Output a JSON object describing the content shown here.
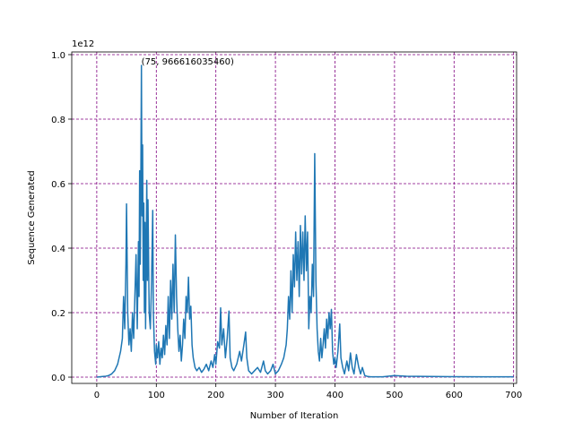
{
  "chart_data": {
    "type": "line",
    "xlabel": "Number of Iteration",
    "ylabel": "Sequence Generated",
    "y_offset_label": "1e12",
    "annotation": {
      "text": "(75, 966616035460)",
      "x": 75,
      "y": 966616035460
    },
    "color": "#1f77b4",
    "grid": true,
    "grid_color": "#800080",
    "xlim": [
      -42,
      705
    ],
    "ylim": [
      -19400000000.0,
      1008300000000.0
    ],
    "xticks": [
      0,
      100,
      200,
      300,
      400,
      500,
      600,
      700
    ],
    "yticks": [
      {
        "value": 0,
        "label": "0.0"
      },
      {
        "value": 200000000000.0,
        "label": "0.2"
      },
      {
        "value": 400000000000.0,
        "label": "0.4"
      },
      {
        "value": 600000000000.0,
        "label": "0.6"
      },
      {
        "value": 800000000000.0,
        "label": "0.8"
      },
      {
        "value": 1000000000000.0,
        "label": "1.0"
      }
    ],
    "x": [
      0,
      5,
      10,
      15,
      20,
      25,
      30,
      35,
      40,
      43,
      45,
      47,
      49,
      50,
      52,
      54,
      56,
      58,
      60,
      62,
      64,
      66,
      68,
      70,
      71,
      72,
      73,
      74,
      75,
      76,
      77,
      78,
      79,
      80,
      81,
      82,
      83,
      84,
      85,
      86,
      88,
      90,
      92,
      94,
      95,
      97,
      99,
      100,
      102,
      104,
      106,
      108,
      110,
      112,
      114,
      116,
      118,
      120,
      122,
      124,
      126,
      128,
      130,
      132,
      134,
      136,
      138,
      140,
      142,
      144,
      146,
      148,
      150,
      152,
      154,
      156,
      158,
      160,
      162,
      165,
      168,
      172,
      176,
      180,
      184,
      188,
      192,
      195,
      198,
      200,
      203,
      206,
      208,
      210,
      213,
      216,
      219,
      222,
      224,
      227,
      230,
      235,
      240,
      243,
      247,
      250,
      252,
      255,
      260,
      265,
      270,
      275,
      280,
      283,
      287,
      292,
      296,
      300,
      305,
      310,
      314,
      318,
      320,
      322,
      324,
      326,
      328,
      330,
      332,
      334,
      336,
      338,
      340,
      342,
      344,
      346,
      348,
      350,
      352,
      354,
      356,
      358,
      360,
      362,
      364,
      366,
      368,
      370,
      372,
      374,
      376,
      378,
      380,
      382,
      384,
      386,
      388,
      390,
      392,
      394,
      396,
      398,
      400,
      402,
      405,
      408,
      410,
      413,
      416,
      420,
      423,
      426,
      429,
      432,
      436,
      440,
      443,
      446,
      450,
      455,
      460,
      480,
      500,
      520,
      560,
      600,
      650,
      700
    ],
    "values": [
      0,
      1000000000.0,
      2000000000.0,
      3000000000.0,
      5000000000.0,
      10000000000.0,
      20000000000.0,
      40000000000.0,
      80000000000.0,
      120000000000.0,
      250000000000.0,
      150000000000.0,
      350000000000.0,
      537000000000.0,
      200000000000.0,
      100000000000.0,
      150000000000.0,
      80000000000.0,
      200000000000.0,
      120000000000.0,
      250000000000.0,
      380000000000.0,
      150000000000.0,
      420000000000.0,
      250000000000.0,
      640000000000.0,
      350000000000.0,
      600000000000.0,
      966616035460,
      500000000000.0,
      720000000000.0,
      300000000000.0,
      540000000000.0,
      200000000000.0,
      480000000000.0,
      150000000000.0,
      380000000000.0,
      610000000000.0,
      300000000000.0,
      550000000000.0,
      200000000000.0,
      150000000000.0,
      300000000000.0,
      517000000000.0,
      200000000000.0,
      80000000000.0,
      40000000000.0,
      100000000000.0,
      60000000000.0,
      110000000000.0,
      40000000000.0,
      90000000000.0,
      60000000000.0,
      130000000000.0,
      70000000000.0,
      160000000000.0,
      100000000000.0,
      250000000000.0,
      120000000000.0,
      300000000000.0,
      180000000000.0,
      350000000000.0,
      200000000000.0,
      441000000000.0,
      250000000000.0,
      150000000000.0,
      80000000000.0,
      130000000000.0,
      50000000000.0,
      100000000000.0,
      180000000000.0,
      120000000000.0,
      250000000000.0,
      200000000000.0,
      310000000000.0,
      180000000000.0,
      220000000000.0,
      100000000000.0,
      60000000000.0,
      30000000000.0,
      20000000000.0,
      30000000000.0,
      15000000000.0,
      25000000000.0,
      40000000000.0,
      20000000000.0,
      50000000000.0,
      30000000000.0,
      70000000000.0,
      40000000000.0,
      110000000000.0,
      90000000000.0,
      215000000000.0,
      100000000000.0,
      150000000000.0,
      60000000000.0,
      120000000000.0,
      205000000000.0,
      60000000000.0,
      30000000000.0,
      20000000000.0,
      40000000000.0,
      80000000000.0,
      50000000000.0,
      100000000000.0,
      140000000000.0,
      60000000000.0,
      20000000000.0,
      10000000000.0,
      20000000000.0,
      30000000000.0,
      15000000000.0,
      50000000000.0,
      20000000000.0,
      10000000000.0,
      20000000000.0,
      40000000000.0,
      10000000000.0,
      20000000000.0,
      40000000000.0,
      60000000000.0,
      100000000000.0,
      150000000000.0,
      250000000000.0,
      180000000000.0,
      330000000000.0,
      200000000000.0,
      380000000000.0,
      280000000000.0,
      450000000000.0,
      300000000000.0,
      420000000000.0,
      250000000000.0,
      470000000000.0,
      320000000000.0,
      450000000000.0,
      300000000000.0,
      500000000000.0,
      330000000000.0,
      450000000000.0,
      150000000000.0,
      250000000000.0,
      200000000000.0,
      350000000000.0,
      250000000000.0,
      693000000000.0,
      300000000000.0,
      150000000000.0,
      80000000000.0,
      50000000000.0,
      120000000000.0,
      60000000000.0,
      100000000000.0,
      150000000000.0,
      90000000000.0,
      180000000000.0,
      120000000000.0,
      200000000000.0,
      150000000000.0,
      210000000000.0,
      80000000000.0,
      40000000000.0,
      60000000000.0,
      30000000000.0,
      80000000000.0,
      165000000000.0,
      60000000000.0,
      30000000000.0,
      10000000000.0,
      50000000000.0,
      20000000000.0,
      75000000000.0,
      30000000000.0,
      10000000000.0,
      70000000000.0,
      30000000000.0,
      10000000000.0,
      30000000000.0,
      5000000000.0,
      2000000000.0,
      1000000000.0,
      1000000000.0,
      5000000000.0,
      3000000000.0,
      2000000000.0,
      1500000000.0,
      1000000000.0,
      1000000000.0
    ]
  }
}
